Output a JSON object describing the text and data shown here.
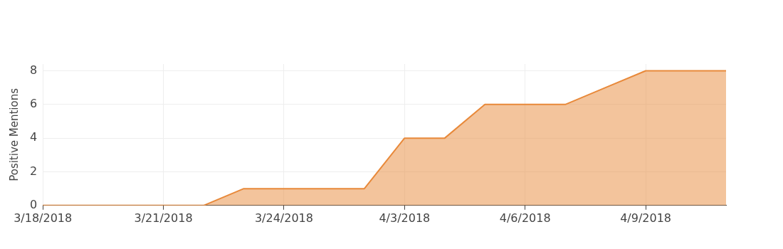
{
  "chart_data": {
    "type": "area",
    "ylabel": "Positive Mentions",
    "categories": [
      "3/18/2018",
      null,
      null,
      "3/21/2018",
      null,
      null,
      "3/24/2018",
      null,
      null,
      "4/3/2018",
      null,
      null,
      "4/6/2018",
      null,
      null,
      "4/9/2018",
      null,
      null
    ],
    "series": [
      {
        "color": "#e8893a",
        "values": [
          0,
          0,
          0,
          0,
          0,
          1,
          1,
          1,
          1,
          4,
          4,
          6,
          6,
          6,
          7,
          8,
          8,
          8
        ]
      }
    ],
    "ylim": [
      0,
      8.4
    ],
    "yticks": [
      0,
      2,
      4,
      6,
      8
    ],
    "grid": true,
    "marker": "none"
  }
}
